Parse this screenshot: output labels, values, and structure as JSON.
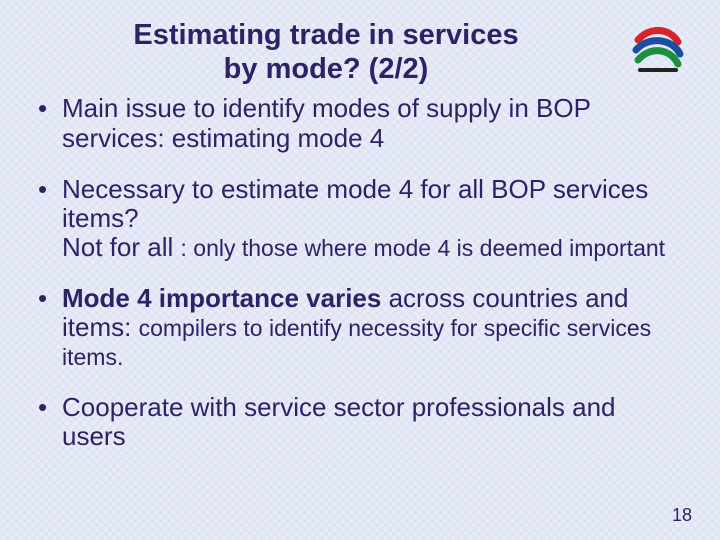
{
  "title_line1": "Estimating trade in services",
  "title_line2": "by mode? (2/2)",
  "bullets": [
    {
      "segments": [
        {
          "text": "Main issue to identify modes of supply in BOP services: estimating mode 4",
          "bold": false,
          "smaller": false
        }
      ]
    },
    {
      "segments": [
        {
          "text": "Necessary to estimate mode 4 for all BOP services items?",
          "bold": false,
          "smaller": false
        },
        {
          "text": "\n",
          "br": true
        },
        {
          "text": "Not for all ",
          "bold": false,
          "smaller": false
        },
        {
          "text": ": only those where mode 4 is deemed important",
          "bold": false,
          "smaller": true
        }
      ]
    },
    {
      "segments": [
        {
          "text": "Mode 4 importance varies",
          "bold": true,
          "smaller": false
        },
        {
          "text": " across countries and items: ",
          "bold": false,
          "smaller": false
        },
        {
          "text": "compilers to identify necessity for specific services items.",
          "bold": false,
          "smaller": true
        }
      ]
    },
    {
      "segments": [
        {
          "text": "Cooperate with service sector professionals and users",
          "bold": false,
          "smaller": false
        }
      ]
    }
  ],
  "page_number": "18",
  "colors": {
    "text": "#2a2366",
    "background": "#e8ecf7",
    "logo_red": "#d8232a",
    "logo_blue": "#1c4fa1",
    "logo_green": "#1e8f3e",
    "logo_black": "#222222"
  },
  "typography": {
    "title_fontsize_pt": 22,
    "body_fontsize_pt": 20,
    "smaller_fontsize_pt": 17,
    "pagenum_fontsize_pt": 14,
    "font_family": "Arial"
  },
  "logo_name": "wto-logo"
}
